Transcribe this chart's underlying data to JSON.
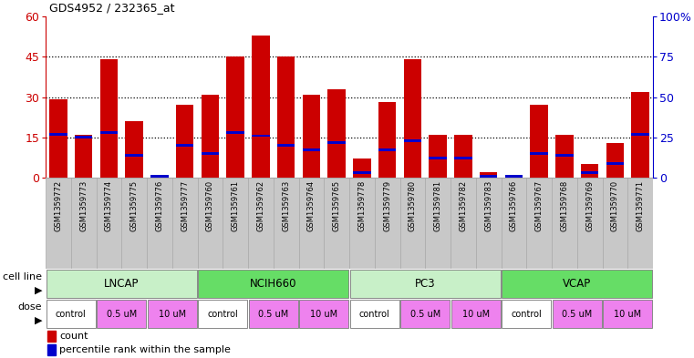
{
  "title": "GDS4952 / 232365_at",
  "samples": [
    "GSM1359772",
    "GSM1359773",
    "GSM1359774",
    "GSM1359775",
    "GSM1359776",
    "GSM1359777",
    "GSM1359760",
    "GSM1359761",
    "GSM1359762",
    "GSM1359763",
    "GSM1359764",
    "GSM1359765",
    "GSM1359778",
    "GSM1359779",
    "GSM1359780",
    "GSM1359781",
    "GSM1359782",
    "GSM1359783",
    "GSM1359766",
    "GSM1359767",
    "GSM1359768",
    "GSM1359769",
    "GSM1359770",
    "GSM1359771"
  ],
  "counts": [
    29,
    16,
    44,
    21,
    0,
    27,
    31,
    45,
    53,
    45,
    31,
    33,
    7,
    28,
    44,
    16,
    16,
    2,
    1,
    27,
    16,
    5,
    13,
    32
  ],
  "percentiles": [
    27,
    25,
    28,
    14,
    1,
    20,
    15,
    28,
    26,
    20,
    17,
    22,
    3,
    17,
    23,
    12,
    12,
    1,
    1,
    15,
    14,
    3,
    9,
    27
  ],
  "cell_line_names": [
    "LNCAP",
    "NCIH660",
    "PC3",
    "VCAP"
  ],
  "cell_line_ranges": [
    [
      0,
      6
    ],
    [
      6,
      12
    ],
    [
      12,
      18
    ],
    [
      18,
      24
    ]
  ],
  "cell_line_colors": [
    "#c8f0c8",
    "#66dd66",
    "#c8f0c8",
    "#66dd66"
  ],
  "dose_labels": [
    "control",
    "0.5 uM",
    "10 uM",
    "control",
    "0.5 uM",
    "10 uM",
    "control",
    "0.5 uM",
    "10 uM",
    "control",
    "0.5 uM",
    "10 uM"
  ],
  "dose_ranges": [
    [
      0,
      2
    ],
    [
      2,
      4
    ],
    [
      4,
      6
    ],
    [
      6,
      8
    ],
    [
      8,
      10
    ],
    [
      10,
      12
    ],
    [
      12,
      14
    ],
    [
      14,
      16
    ],
    [
      16,
      18
    ],
    [
      18,
      20
    ],
    [
      20,
      22
    ],
    [
      22,
      24
    ]
  ],
  "dose_colors": [
    "#ffffff",
    "#ee82ee",
    "#ee82ee",
    "#ffffff",
    "#ee82ee",
    "#ee82ee",
    "#ffffff",
    "#ee82ee",
    "#ee82ee",
    "#ffffff",
    "#ee82ee",
    "#ee82ee"
  ],
  "left_ylim": [
    0,
    60
  ],
  "right_ylim": [
    0,
    100
  ],
  "left_yticks": [
    0,
    15,
    30,
    45,
    60
  ],
  "right_yticks": [
    0,
    25,
    50,
    75,
    100
  ],
  "right_yticklabels": [
    "0",
    "25",
    "50",
    "75",
    "100%"
  ],
  "bar_color": "#cc0000",
  "percentile_color": "#0000cc",
  "label_bg": "#c8c8c8",
  "bg_color": "#ffffff"
}
